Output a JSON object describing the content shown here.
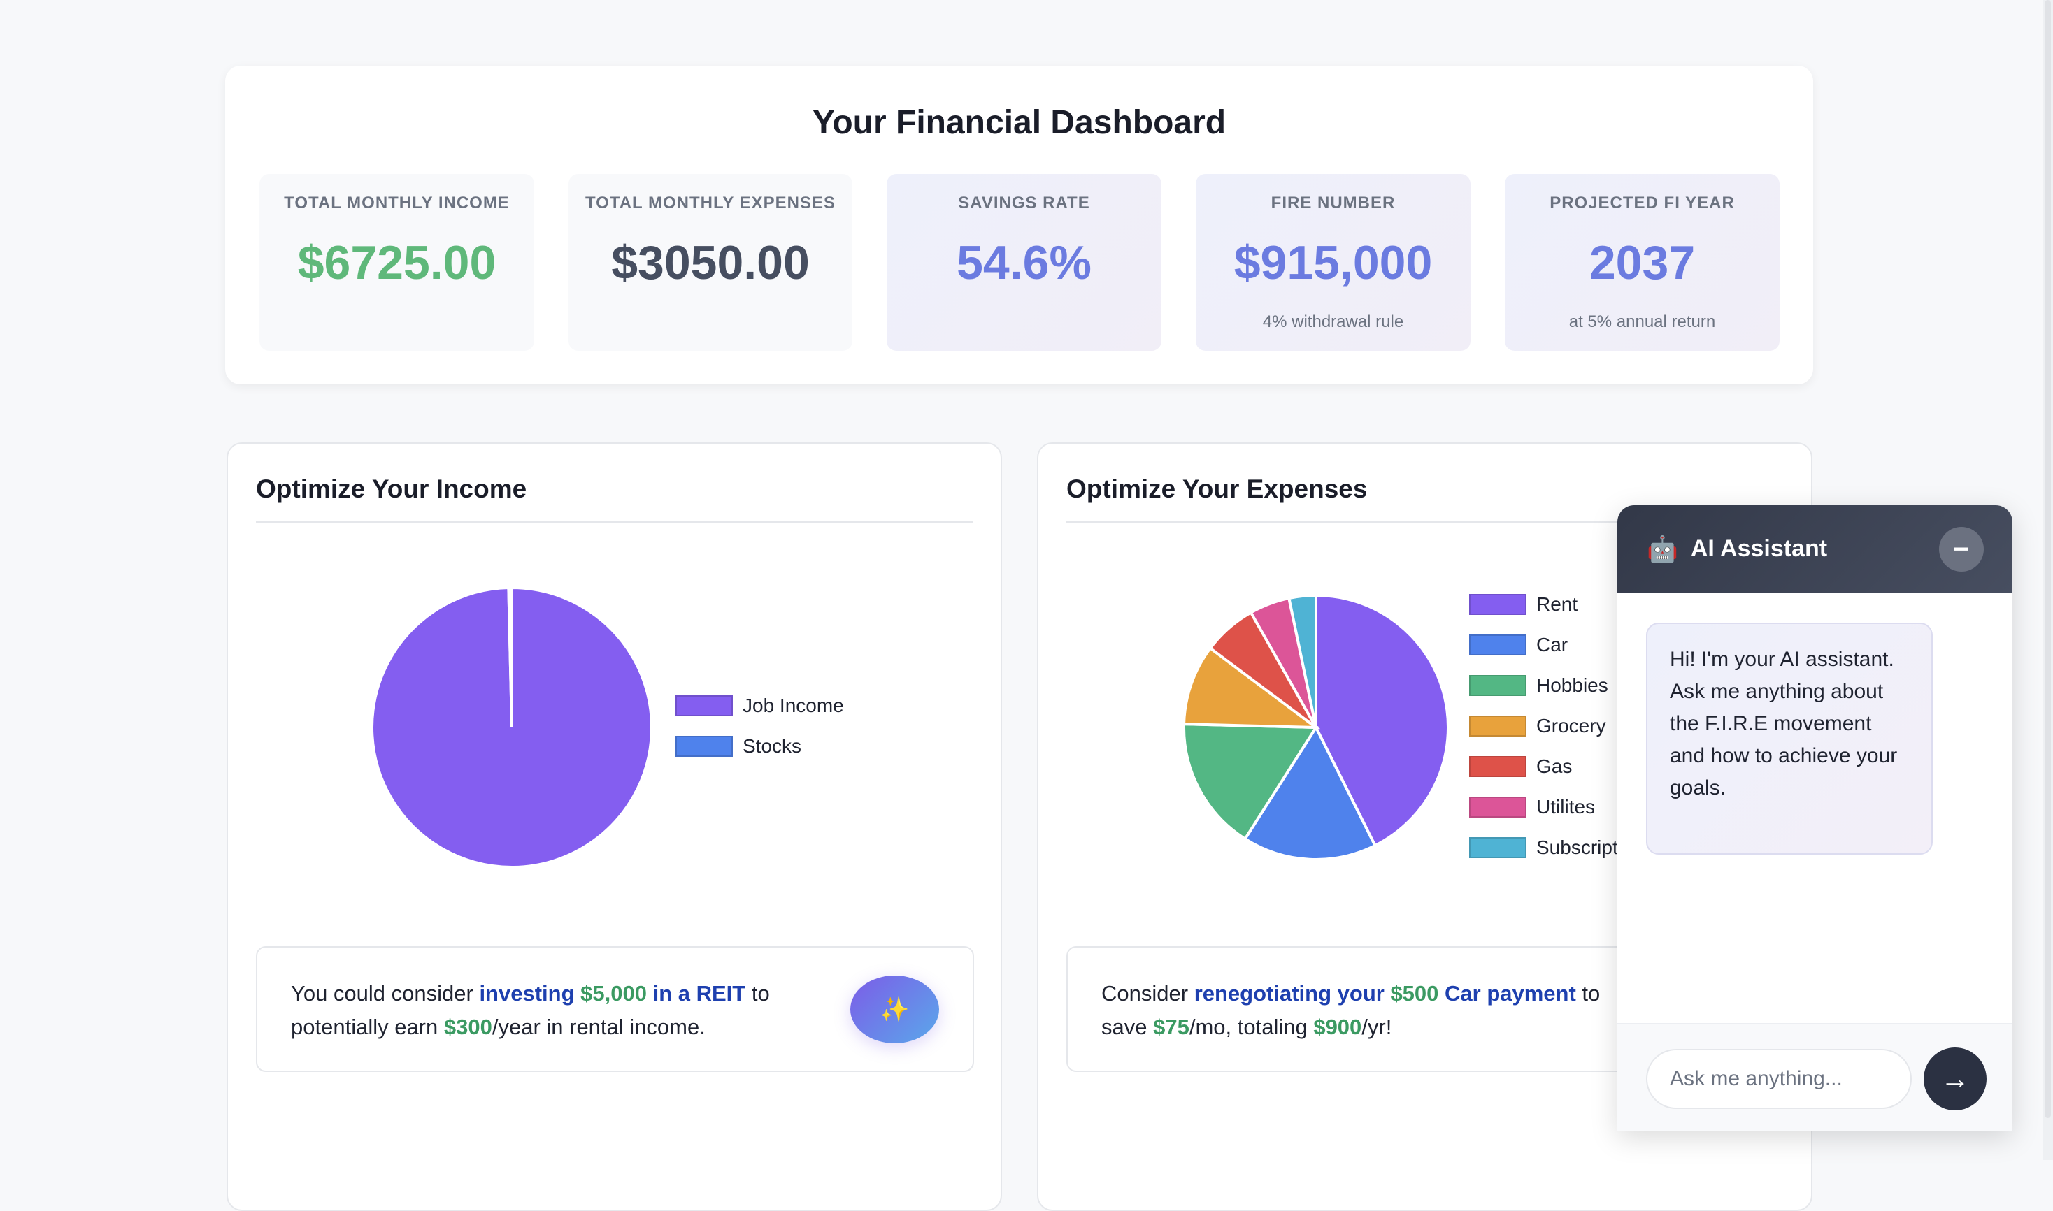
{
  "dashboard": {
    "title": "Your Financial Dashboard",
    "stats": [
      {
        "label": "TOTAL MONTHLY INCOME",
        "value": "$6725.00",
        "color": "#5fb87a"
      },
      {
        "label": "TOTAL MONTHLY EXPENSES",
        "value": "$3050.00",
        "color": "#464e60"
      },
      {
        "label": "SAVINGS RATE",
        "value": "54.6%",
        "color": "#6b7be0"
      },
      {
        "label": "FIRE NUMBER",
        "value": "$915,000",
        "sub": "4% withdrawal rule",
        "color": "#6b7be0"
      },
      {
        "label": "PROJECTED FI YEAR",
        "value": "2037",
        "sub": "at 5% annual return",
        "color": "#6b7be0"
      }
    ]
  },
  "income": {
    "title": "Optimize Your Income",
    "tip": {
      "t1": "You could consider ",
      "t2": "investing ",
      "t3": "$5,000",
      "t4": " in a REIT",
      "t5": " to potentially earn ",
      "t6": "$300",
      "t7": "/year in rental income."
    },
    "button_icon": "sparkles-icon"
  },
  "expenses": {
    "title": "Optimize Your Expenses",
    "tip": {
      "t1": "Consider ",
      "t2": "renegotiating your ",
      "t3": "$500",
      "t4": " Car payment",
      "t5": " to save ",
      "t6": "$75",
      "t7": "/mo, totaling ",
      "t8": "$900",
      "t9": "/yr!"
    }
  },
  "chart_data": [
    {
      "type": "pie",
      "labels": [
        "Job Income",
        "Stocks"
      ],
      "values": [
        6700,
        25
      ],
      "colors": [
        "#845ef0",
        "#4f82ec"
      ],
      "legend": "right"
    },
    {
      "type": "pie",
      "labels": [
        "Rent",
        "Car",
        "Hobbies",
        "Grocery",
        "Gas",
        "Utilites",
        "Subscriptions"
      ],
      "values": [
        1300,
        500,
        500,
        300,
        200,
        150,
        100
      ],
      "colors": [
        "#845ef0",
        "#4f82ec",
        "#53b784",
        "#e8a23c",
        "#de5249",
        "#dc5598",
        "#4fb3d4"
      ],
      "legend": "right"
    }
  ],
  "chat": {
    "title": "AI Assistant",
    "icon": "robot-icon",
    "minimize": "−",
    "message": "Hi! I'm your AI assistant. Ask me anything about the F.I.R.E movement and how to achieve your goals.",
    "placeholder": "Ask me anything...",
    "send": "→"
  }
}
